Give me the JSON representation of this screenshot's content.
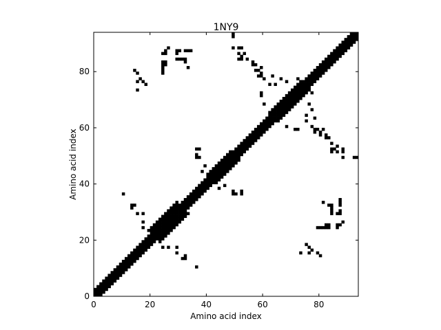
{
  "chart_data": {
    "type": "heatmap",
    "title": "1NY9",
    "xlabel": "Amino acid index",
    "ylabel": "Amino acid index",
    "xlim": [
      0,
      94
    ],
    "ylim": [
      0,
      94
    ],
    "x_ticks": [
      0,
      20,
      40,
      60,
      80
    ],
    "y_ticks": [
      0,
      20,
      40,
      60,
      80
    ],
    "colormap": {
      "contact": "#000000",
      "no_contact": "#ffffff"
    },
    "diagonal_band": {
      "offsets": [
        -2,
        -1,
        0,
        1,
        2
      ]
    },
    "diagonal_bulges": [
      [
        23,
        29,
        4
      ],
      [
        43,
        48,
        3
      ],
      [
        65,
        73,
        3
      ]
    ],
    "contacts": [
      [
        49,
        92
      ],
      [
        49,
        88
      ],
      [
        51,
        88
      ],
      [
        51,
        84
      ],
      [
        52,
        84
      ],
      [
        56,
        82
      ],
      [
        57,
        80
      ],
      [
        58,
        80
      ],
      [
        58,
        78
      ],
      [
        60,
        77
      ],
      [
        62,
        75
      ],
      [
        64,
        75
      ],
      [
        66,
        67
      ],
      [
        67,
        66
      ],
      [
        24,
        86
      ],
      [
        25,
        86
      ],
      [
        24,
        82
      ],
      [
        25,
        82
      ],
      [
        24,
        79
      ],
      [
        29,
        87
      ],
      [
        30,
        87
      ],
      [
        33,
        87
      ],
      [
        29,
        84
      ],
      [
        30,
        84
      ],
      [
        32,
        84
      ],
      [
        32,
        83
      ],
      [
        14,
        80
      ],
      [
        15,
        76
      ],
      [
        17,
        76
      ],
      [
        15,
        73
      ],
      [
        72,
        77
      ],
      [
        75,
        74
      ],
      [
        76,
        68
      ],
      [
        77,
        66
      ],
      [
        78,
        63
      ],
      [
        78,
        59
      ],
      [
        79,
        59
      ],
      [
        81,
        59
      ],
      [
        82,
        57
      ],
      [
        83,
        56
      ],
      [
        84,
        54
      ],
      [
        85,
        52
      ],
      [
        86,
        53
      ],
      [
        86,
        51
      ],
      [
        88,
        52
      ],
      [
        88,
        49
      ],
      [
        93,
        49
      ],
      [
        68,
        60
      ],
      [
        71,
        59
      ],
      [
        72,
        59
      ],
      [
        36,
        52
      ],
      [
        36,
        50
      ],
      [
        36,
        49
      ],
      [
        39,
        46
      ],
      [
        38,
        44
      ],
      [
        49,
        37
      ],
      [
        52,
        37
      ],
      [
        10,
        36
      ],
      [
        13,
        32
      ],
      [
        14,
        32
      ],
      [
        15,
        29
      ],
      [
        17,
        29
      ],
      [
        17,
        26
      ],
      [
        17,
        24
      ],
      [
        23,
        22
      ],
      [
        23,
        20
      ],
      [
        24,
        17
      ],
      [
        81,
        33
      ],
      [
        83,
        32
      ],
      [
        84,
        31
      ],
      [
        87,
        34
      ],
      [
        87,
        32
      ],
      [
        86,
        29
      ],
      [
        88,
        26
      ],
      [
        87,
        25
      ],
      [
        83,
        25
      ],
      [
        83,
        24
      ],
      [
        81,
        24
      ],
      [
        80,
        24
      ],
      [
        75,
        18
      ],
      [
        77,
        16
      ],
      [
        73,
        15
      ],
      [
        76,
        15
      ],
      [
        79,
        15
      ],
      [
        80,
        14
      ],
      [
        29,
        17
      ],
      [
        29,
        15
      ],
      [
        31,
        13
      ],
      [
        36,
        10
      ]
    ]
  }
}
